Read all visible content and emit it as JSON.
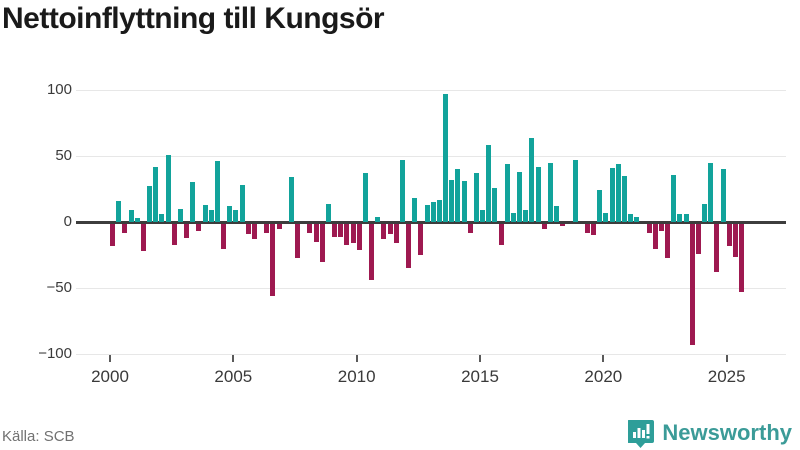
{
  "title": "Nettoinflyttning till Kungsör",
  "source": "Källa: SCB",
  "brand": {
    "name": "Newsworthy"
  },
  "colors": {
    "positive": "#12a39b",
    "negative": "#9e1950",
    "gridline": "#e7e7e7",
    "zero_line": "#3d3d3d",
    "axis_text": "#3a3a3a",
    "brand_teal": "#3b9b98",
    "badge_teal": "#2e9e99"
  },
  "chart_data": {
    "type": "bar",
    "title": "Nettoinflyttning till Kungsör",
    "frequency": "quarterly",
    "start_year": 2000,
    "start_quarter": 1,
    "x_tick_labels": [
      "2000",
      "2005",
      "2010",
      "2015",
      "2020",
      "2025"
    ],
    "y_tick_values": [
      100,
      50,
      0,
      -50,
      -100
    ],
    "y_tick_labels": [
      "100",
      "50",
      "0",
      "−50",
      "−100"
    ],
    "ylim": [
      -100,
      100
    ],
    "grid": true,
    "legend": "none",
    "values": [
      -17,
      16,
      -7,
      9,
      3,
      -21,
      27,
      42,
      6,
      51,
      -16,
      10,
      -11,
      30,
      -6,
      13,
      9,
      46,
      -19,
      12,
      9,
      28,
      -8,
      -12,
      0,
      -7,
      -55,
      -4,
      0,
      34,
      -26,
      0,
      -7,
      -14,
      -29,
      14,
      -10,
      -10,
      -16,
      -15,
      -20,
      37,
      -43,
      4,
      -12,
      -8,
      -15,
      47,
      -34,
      18,
      -24,
      13,
      15,
      17,
      97,
      32,
      40,
      31,
      -7,
      37,
      9,
      58,
      26,
      -16,
      44,
      7,
      38,
      9,
      64,
      42,
      -4,
      45,
      12,
      -2,
      0,
      47,
      0,
      -7,
      -9,
      24,
      7,
      41,
      44,
      35,
      6,
      4,
      0,
      -7,
      -19,
      -6,
      -26,
      36,
      6,
      6,
      -92,
      -23,
      14,
      45,
      -37,
      40,
      -17,
      -25,
      -52
    ]
  }
}
